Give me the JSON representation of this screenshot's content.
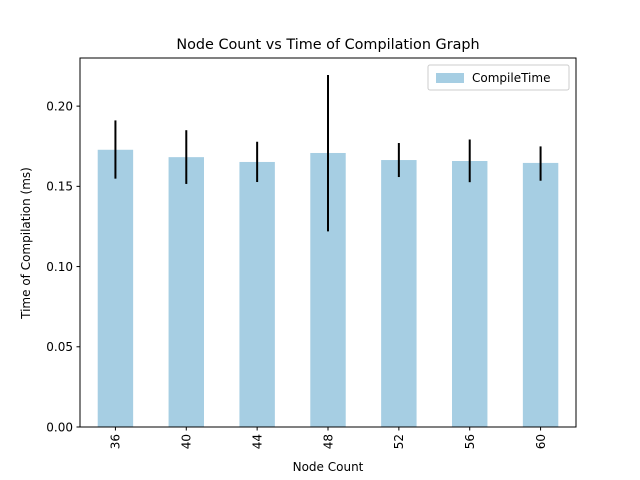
{
  "chart_data": {
    "type": "bar",
    "title": "Node Count vs Time of Compilation Graph",
    "xlabel": "Node Count",
    "ylabel": "Time of Compilation (ms)",
    "categories": [
      "36",
      "40",
      "44",
      "48",
      "52",
      "56",
      "60"
    ],
    "series": [
      {
        "name": "CompileTime",
        "values": [
          0.1728,
          0.1682,
          0.1652,
          0.1708,
          0.1664,
          0.1658,
          0.1646
        ],
        "error_low": [
          0.1548,
          0.1515,
          0.1527,
          0.1219,
          0.1558,
          0.1526,
          0.1535
        ],
        "error_high": [
          0.1911,
          0.185,
          0.1778,
          0.2194,
          0.177,
          0.1792,
          0.1749
        ],
        "color": "#a6cee3"
      }
    ],
    "ylim": [
      0,
      0.23
    ],
    "yticks": [
      0.0,
      0.05,
      0.1,
      0.15,
      0.2
    ],
    "ytick_labels": [
      "0.00",
      "0.05",
      "0.10",
      "0.15",
      "0.20"
    ],
    "grid": false,
    "legend": "top-right",
    "error_bar_color": "#000000"
  }
}
